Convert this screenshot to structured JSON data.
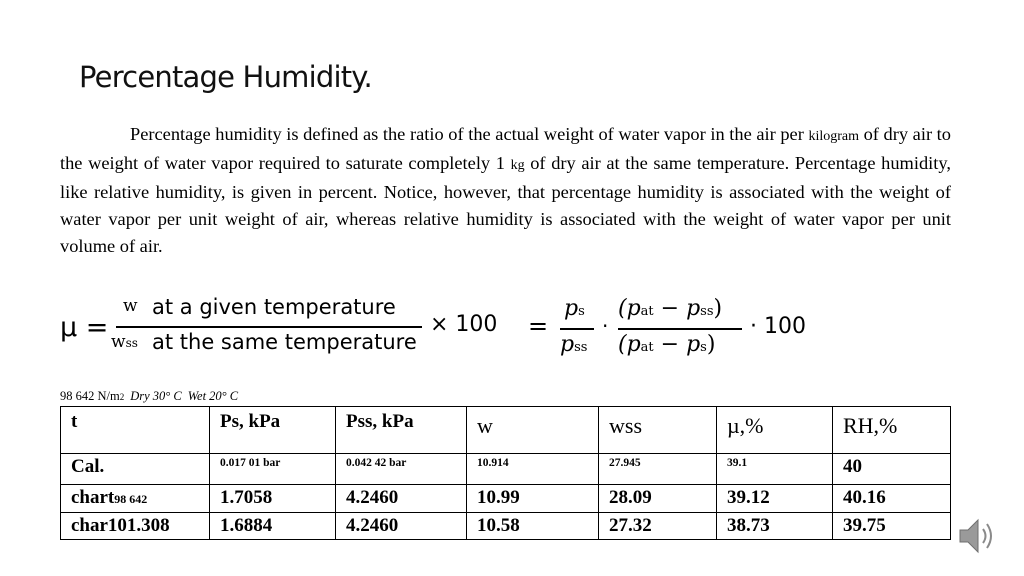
{
  "title": "Percentage Humidity.",
  "paragraph": {
    "p1": "Percentage humidity is defined as the ratio of the actual weight of water vapor in the air per ",
    "unit1": "kilogram",
    "p2": " of dry air to the weight of water vapor required to saturate completely 1 ",
    "unit2": "kg",
    "p3": " of dry air at the same temperature. Percentage humidity, like relative humidity, is given in percent. Notice, however, that percentage humidity is associated with the weight of water vapor per unit weight of air, whereas relative humidity is associated with the weight of water vapor per unit volume of air."
  },
  "equation": {
    "mu": "μ =",
    "num_w": "w",
    "num_text": "at a given temperature",
    "den_w": "w",
    "den_sub": "ss",
    "den_text": "at the same temperature",
    "times100": "× 100",
    "eq": "=",
    "ps": "p",
    "ps_sub": "s",
    "pss": "p",
    "pss_sub": "ss",
    "dot": "·",
    "rnum": "(p",
    "rnum_sub1": "at",
    "rnum_mid": " − p",
    "rnum_sub2": "ss",
    "rnum_end": ")",
    "rden": "(p",
    "rden_sub1": "at",
    "rden_mid": " − p",
    "rden_sub2": "s",
    "rden_end": ")",
    "dot100": "· 100"
  },
  "conditions": {
    "pressure": "98 642 N/m",
    "pressure_sub": "2",
    "dry": "Dry 30° C",
    "wet": "Wet 20° C"
  },
  "table": {
    "headers": [
      "t",
      "Ps, kPa",
      "Pss, kPa",
      "w",
      "wss",
      "µ,%",
      "RH,%"
    ],
    "calc": [
      "Cal.",
      "0.017 01 bar",
      "0.042 42 bar",
      "10.914",
      "27.945",
      "39.1",
      "40"
    ],
    "row1_label": "chart",
    "row1_label_sub": "98 642",
    "row1": [
      "1.7058",
      "4.2460",
      "10.99",
      "28.09",
      "39.12",
      "40.16"
    ],
    "row2": [
      "char101.308",
      "1.6884",
      "4.2460",
      "10.58",
      "27.32",
      "38.73",
      "39.75"
    ]
  },
  "icons": {
    "speaker": "speaker-icon"
  }
}
